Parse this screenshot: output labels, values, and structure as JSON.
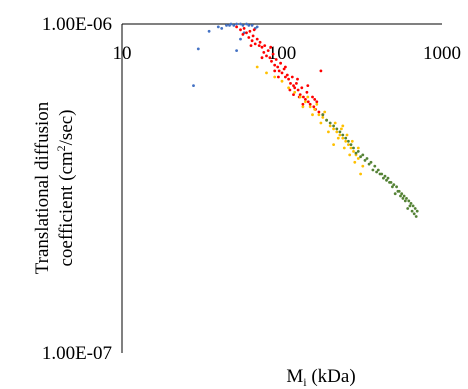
{
  "chart_data": {
    "type": "scatter",
    "title": "",
    "xscale": "log",
    "yscale": "log",
    "xlim": [
      10,
      1000
    ],
    "ylim": [
      1e-07,
      1e-06
    ],
    "xlabel_main": "M",
    "xlabel_sub": "i",
    "xlabel_rest": " (kDa)",
    "ylabel_line1": "Translational diffusion",
    "ylabel_line2_pre": "coefficient (cm",
    "ylabel_line2_sup": "2",
    "ylabel_line2_post": "/sec)",
    "x_tick_labels": [
      {
        "value": 10,
        "label": "10"
      },
      {
        "value": 100,
        "label": "100"
      },
      {
        "value": 1000,
        "label": "1000"
      }
    ],
    "y_tick_labels": [
      {
        "value": 1e-06,
        "label": "1.00E-06"
      },
      {
        "value": 1e-07,
        "label": "1.00E-07"
      }
    ],
    "legend": "none",
    "grid": false,
    "series": [
      {
        "color": "#4472C4",
        "points": [
          [
            28,
            6.5e-07
          ],
          [
            30,
            8.4e-07
          ],
          [
            35,
            9.5e-07
          ],
          [
            40,
            9.8e-07
          ],
          [
            45,
            9.9e-07
          ],
          [
            48,
            1e-06
          ],
          [
            50,
            9.9e-07
          ],
          [
            52,
            1e-06
          ],
          [
            55,
            1e-06
          ],
          [
            57,
            9.9e-07
          ],
          [
            60,
            1e-06
          ],
          [
            62,
            9.9e-07
          ],
          [
            65,
            9.9e-07
          ],
          [
            68,
            9.7e-07
          ],
          [
            52,
            8.3e-07
          ],
          [
            55,
            9e-07
          ],
          [
            58,
            9.4e-07
          ],
          [
            70,
            9.8e-07
          ],
          [
            42,
            9.7e-07
          ],
          [
            47,
            9.9e-07
          ]
        ]
      },
      {
        "color": "#FF0000",
        "points": [
          [
            52,
            9.8e-07
          ],
          [
            55,
            9.6e-07
          ],
          [
            57,
            9.3e-07
          ],
          [
            58,
            9.7e-07
          ],
          [
            60,
            9.4e-07
          ],
          [
            62,
            9.1e-07
          ],
          [
            63,
            9.5e-07
          ],
          [
            65,
            8.9e-07
          ],
          [
            66,
            9.2e-07
          ],
          [
            68,
            8.7e-07
          ],
          [
            70,
            9e-07
          ],
          [
            72,
            8.6e-07
          ],
          [
            73,
            8.8e-07
          ],
          [
            75,
            8.5e-07
          ],
          [
            77,
            8.2e-07
          ],
          [
            78,
            8.6e-07
          ],
          [
            80,
            8e-07
          ],
          [
            82,
            8.3e-07
          ],
          [
            84,
            7.9e-07
          ],
          [
            86,
            7.7e-07
          ],
          [
            88,
            8.1e-07
          ],
          [
            90,
            7.5e-07
          ],
          [
            92,
            7.8e-07
          ],
          [
            94,
            7.4e-07
          ],
          [
            96,
            7.2e-07
          ],
          [
            98,
            7.6e-07
          ],
          [
            100,
            7.1e-07
          ],
          [
            103,
            7.3e-07
          ],
          [
            105,
            6.9e-07
          ],
          [
            108,
            7e-07
          ],
          [
            110,
            6.8e-07
          ],
          [
            113,
            6.6e-07
          ],
          [
            116,
            6.9e-07
          ],
          [
            118,
            6.5e-07
          ],
          [
            120,
            6.4e-07
          ],
          [
            123,
            6.6e-07
          ],
          [
            126,
            6.3e-07
          ],
          [
            130,
            6.1e-07
          ],
          [
            133,
            6.4e-07
          ],
          [
            136,
            6e-07
          ],
          [
            140,
            5.9e-07
          ],
          [
            143,
            6.2e-07
          ],
          [
            146,
            5.8e-07
          ],
          [
            150,
            5.7e-07
          ],
          [
            155,
            6e-07
          ],
          [
            158,
            5.6e-07
          ],
          [
            162,
            5.5e-07
          ],
          [
            165,
            5.8e-07
          ],
          [
            170,
            5.4e-07
          ],
          [
            175,
            7.2e-07
          ],
          [
            180,
            5.3e-07
          ],
          [
            95,
            6.9e-07
          ],
          [
            105,
            7.4e-07
          ],
          [
            112,
            6.3e-07
          ],
          [
            125,
            6.8e-07
          ],
          [
            135,
            5.7e-07
          ],
          [
            145,
            6.5e-07
          ],
          [
            160,
            5.9e-07
          ],
          [
            85,
            8.5e-07
          ],
          [
            75,
            7.9e-07
          ],
          [
            67,
            9.6e-07
          ],
          [
            64,
            8.6e-07
          ],
          [
            90,
            7.2e-07
          ],
          [
            118,
            6.1e-07
          ],
          [
            128,
            6e-07
          ]
        ]
      },
      {
        "color": "#FFC000",
        "points": [
          [
            70,
            7.4e-07
          ],
          [
            80,
            7.1e-07
          ],
          [
            90,
            6.9e-07
          ],
          [
            100,
            6.7e-07
          ],
          [
            110,
            6.4e-07
          ],
          [
            120,
            6.2e-07
          ],
          [
            130,
            6e-07
          ],
          [
            140,
            5.8e-07
          ],
          [
            150,
            5.6e-07
          ],
          [
            160,
            5.5e-07
          ],
          [
            170,
            5.3e-07
          ],
          [
            180,
            5.2e-07
          ],
          [
            190,
            5.1e-07
          ],
          [
            200,
            4.9e-07
          ],
          [
            210,
            4.8e-07
          ],
          [
            220,
            4.7e-07
          ],
          [
            230,
            4.6e-07
          ],
          [
            240,
            4.5e-07
          ],
          [
            250,
            4.4e-07
          ],
          [
            260,
            4.3e-07
          ],
          [
            270,
            4.2e-07
          ],
          [
            280,
            4.1e-07
          ],
          [
            290,
            4e-07
          ],
          [
            300,
            3.9e-07
          ],
          [
            310,
            3.5e-07
          ],
          [
            215,
            5e-07
          ],
          [
            225,
            4.5e-07
          ],
          [
            235,
            4.8e-07
          ],
          [
            245,
            4.2e-07
          ],
          [
            255,
            4.6e-07
          ],
          [
            265,
            4e-07
          ],
          [
            275,
            4.4e-07
          ],
          [
            285,
            3.8e-07
          ],
          [
            195,
            4.7e-07
          ],
          [
            185,
            5.4e-07
          ],
          [
            175,
            5e-07
          ],
          [
            165,
            5.7e-07
          ],
          [
            155,
            5.3e-07
          ],
          [
            145,
            6e-07
          ],
          [
            135,
            5.6e-07
          ],
          [
            210,
            4.3e-07
          ],
          [
            320,
            3.7e-07
          ],
          [
            300,
            4.2e-07
          ],
          [
            240,
            4.9e-07
          ]
        ]
      },
      {
        "color": "#548235",
        "points": [
          [
            180,
            5.3e-07
          ],
          [
            200,
            5e-07
          ],
          [
            220,
            4.8e-07
          ],
          [
            240,
            4.6e-07
          ],
          [
            260,
            4.4e-07
          ],
          [
            280,
            4.2e-07
          ],
          [
            300,
            4.1e-07
          ],
          [
            320,
            4e-07
          ],
          [
            340,
            3.9e-07
          ],
          [
            360,
            3.8e-07
          ],
          [
            380,
            3.7e-07
          ],
          [
            400,
            3.6e-07
          ],
          [
            420,
            3.5e-07
          ],
          [
            440,
            3.45e-07
          ],
          [
            460,
            3.4e-07
          ],
          [
            480,
            3.3e-07
          ],
          [
            500,
            3.25e-07
          ],
          [
            520,
            3.2e-07
          ],
          [
            540,
            3.1e-07
          ],
          [
            560,
            3.05e-07
          ],
          [
            580,
            3e-07
          ],
          [
            600,
            2.95e-07
          ],
          [
            620,
            2.9e-07
          ],
          [
            640,
            2.85e-07
          ],
          [
            660,
            2.8e-07
          ],
          [
            680,
            2.75e-07
          ],
          [
            700,
            2.7e-07
          ],
          [
            690,
            2.6e-07
          ],
          [
            670,
            2.65e-07
          ],
          [
            650,
            2.7e-07
          ],
          [
            630,
            2.8e-07
          ],
          [
            610,
            2.75e-07
          ],
          [
            590,
            2.9e-07
          ],
          [
            570,
            2.95e-07
          ],
          [
            550,
            3e-07
          ],
          [
            530,
            3.1e-07
          ],
          [
            510,
            3.05e-07
          ],
          [
            490,
            3.2e-07
          ],
          [
            470,
            3.3e-07
          ],
          [
            450,
            3.35e-07
          ],
          [
            430,
            3.4e-07
          ],
          [
            410,
            3.5e-07
          ],
          [
            390,
            3.55e-07
          ],
          [
            370,
            3.6e-07
          ],
          [
            350,
            3.75e-07
          ],
          [
            330,
            3.85e-07
          ],
          [
            310,
            3.95e-07
          ],
          [
            290,
            4.05e-07
          ],
          [
            270,
            4.3e-07
          ],
          [
            250,
            4.5e-07
          ],
          [
            230,
            4.7e-07
          ],
          [
            210,
            4.9e-07
          ],
          [
            190,
            5.1e-07
          ]
        ]
      }
    ]
  }
}
